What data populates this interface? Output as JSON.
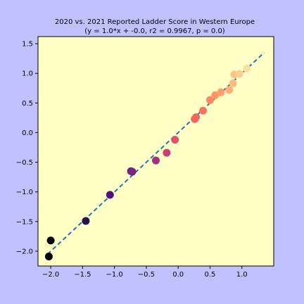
{
  "chart_data": {
    "type": "scatter",
    "title": "2020 vs. 2021 Reported Ladder Score in Western Europe",
    "subtitle": "(y = 1.0*x + -0.0, r2 = 0.9967, p = 0.0)",
    "xlabel": "",
    "ylabel": "",
    "xlim": [
      -2.2,
      1.5
    ],
    "ylim": [
      -2.25,
      1.62
    ],
    "x_ticks": [
      -2.0,
      -1.5,
      -1.0,
      -0.5,
      0.0,
      0.5,
      1.0
    ],
    "x_tick_labels": [
      "−2.0",
      "−1.5",
      "−1.0",
      "−0.5",
      "0.0",
      "0.5",
      "1.0"
    ],
    "y_ticks": [
      -2.0,
      -1.5,
      -1.0,
      -0.5,
      0.0,
      0.5,
      1.0,
      1.5
    ],
    "y_tick_labels": [
      "−2.0",
      "−1.5",
      "−1.0",
      "−0.5",
      "0.0",
      "0.5",
      "1.0",
      "1.5"
    ],
    "grid": false,
    "background_color": "#ffffc6",
    "points": [
      {
        "x": -2.03,
        "y": -2.09,
        "color": "#000004"
      },
      {
        "x": -2.0,
        "y": -1.82,
        "color": "#000004"
      },
      {
        "x": -1.45,
        "y": -1.49,
        "color": "#221150"
      },
      {
        "x": -1.07,
        "y": -1.05,
        "color": "#51127c"
      },
      {
        "x": -0.74,
        "y": -0.65,
        "color": "#6a1c81"
      },
      {
        "x": -0.72,
        "y": -0.66,
        "color": "#7b2382"
      },
      {
        "x": -0.35,
        "y": -0.47,
        "color": "#a3307e"
      },
      {
        "x": -0.18,
        "y": -0.34,
        "color": "#c83e73"
      },
      {
        "x": -0.05,
        "y": -0.12,
        "color": "#e3506a"
      },
      {
        "x": 0.26,
        "y": 0.23,
        "color": "#f1605d"
      },
      {
        "x": 0.28,
        "y": 0.26,
        "color": "#f5665c"
      },
      {
        "x": 0.39,
        "y": 0.37,
        "color": "#f8745c"
      },
      {
        "x": 0.5,
        "y": 0.55,
        "color": "#fb8861"
      },
      {
        "x": 0.58,
        "y": 0.63,
        "color": "#fd9567"
      },
      {
        "x": 0.67,
        "y": 0.68,
        "color": "#fe9f6d"
      },
      {
        "x": 0.8,
        "y": 0.72,
        "color": "#feb078"
      },
      {
        "x": 0.86,
        "y": 0.83,
        "color": "#febb81"
      },
      {
        "x": 0.88,
        "y": 0.98,
        "color": "#fec287"
      },
      {
        "x": 0.96,
        "y": 0.99,
        "color": "#fecf92"
      },
      {
        "x": 1.08,
        "y": 1.08,
        "color": "#fcdfa3"
      }
    ],
    "fit_line": {
      "slope": 1.0,
      "intercept": 0.0,
      "x_range": [
        -2.05,
        1.35
      ],
      "color": "#1f77b4",
      "style": "dashed"
    }
  }
}
